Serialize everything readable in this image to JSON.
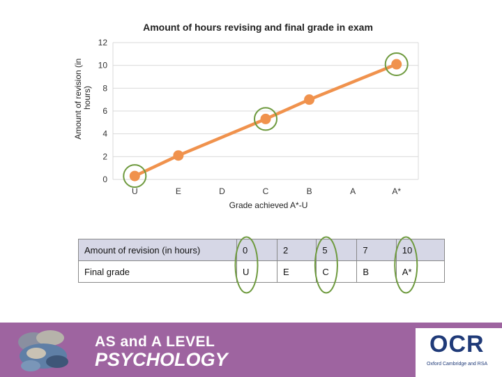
{
  "chart_data": {
    "type": "line",
    "title": "Amount of hours revising and final grade in exam",
    "xlabel": "Grade achieved A*-U",
    "ylabel": "Amount of revision (in hours)",
    "categories": [
      "U",
      "E",
      "D",
      "C",
      "B",
      "A",
      "A*"
    ],
    "series": [
      {
        "values": [
          0.3,
          2.1,
          null,
          5.3,
          7.0,
          null,
          10.1
        ]
      }
    ],
    "circled_points": [
      "U",
      "C",
      "A*"
    ],
    "ylim": [
      0,
      12
    ],
    "yticks": [
      0,
      2,
      4,
      6,
      8,
      10,
      12
    ],
    "grid": true,
    "line_color": "#f0924d",
    "circle_color": "#6e9a3e"
  },
  "table": {
    "rows": [
      {
        "label": "Amount of revision (in hours)",
        "cells": [
          "0",
          "2",
          "5",
          "7",
          "10"
        ]
      },
      {
        "label": "Final grade",
        "cells": [
          "U",
          "E",
          "C",
          "B",
          "A*"
        ]
      }
    ],
    "circled_columns": [
      0,
      2,
      4
    ]
  },
  "footer": {
    "line1": "AS and A LEVEL",
    "line2": "PSYCHOLOGY",
    "logo_text": "OCR",
    "logo_tagline": "Oxford Cambridge and RSA",
    "background": "#9e64a0"
  }
}
